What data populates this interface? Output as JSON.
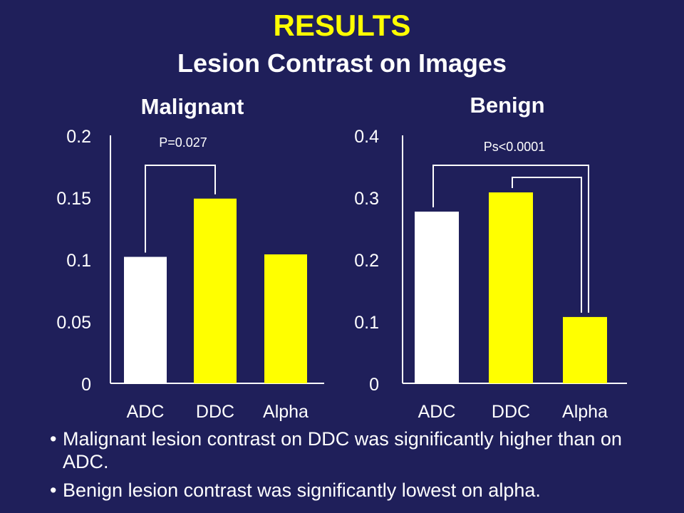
{
  "header": {
    "title": "RESULTS",
    "subtitle": "Lesion Contrast on Images"
  },
  "colors": {
    "background": "#1f1f5a",
    "accent": "#ffff00",
    "bar_white": "#ffffff",
    "bar_yellow": "#ffff00",
    "axis": "#ffffff"
  },
  "chart_data": [
    {
      "type": "bar",
      "title": "Malignant",
      "categories": [
        "ADC",
        "DDC",
        "Alpha"
      ],
      "values": [
        0.102,
        0.149,
        0.104
      ],
      "bar_colors": [
        "#ffffff",
        "#ffff00",
        "#ffff00"
      ],
      "ylim": [
        0,
        0.2
      ],
      "yticks": [
        "0",
        "0.05",
        "0.1",
        "0.15",
        "0.2"
      ],
      "ytick_values": [
        0,
        0.05,
        0.1,
        0.15,
        0.2
      ],
      "annotation": "P=0.027"
    },
    {
      "type": "bar",
      "title": "Benign",
      "categories": [
        "ADC",
        "DDC",
        "Alpha"
      ],
      "values": [
        0.277,
        0.308,
        0.107
      ],
      "bar_colors": [
        "#ffffff",
        "#ffff00",
        "#ffff00"
      ],
      "ylim": [
        0,
        0.4
      ],
      "yticks": [
        "0",
        "0.1",
        "0.2",
        "0.3",
        "0.4"
      ],
      "ytick_values": [
        0,
        0.1,
        0.2,
        0.3,
        0.4
      ],
      "annotation": "Ps<0.0001"
    }
  ],
  "bullets": [
    "Malignant lesion contrast on DDC was significantly higher than on ADC.",
    "Benign lesion contrast was significantly lowest on alpha."
  ]
}
